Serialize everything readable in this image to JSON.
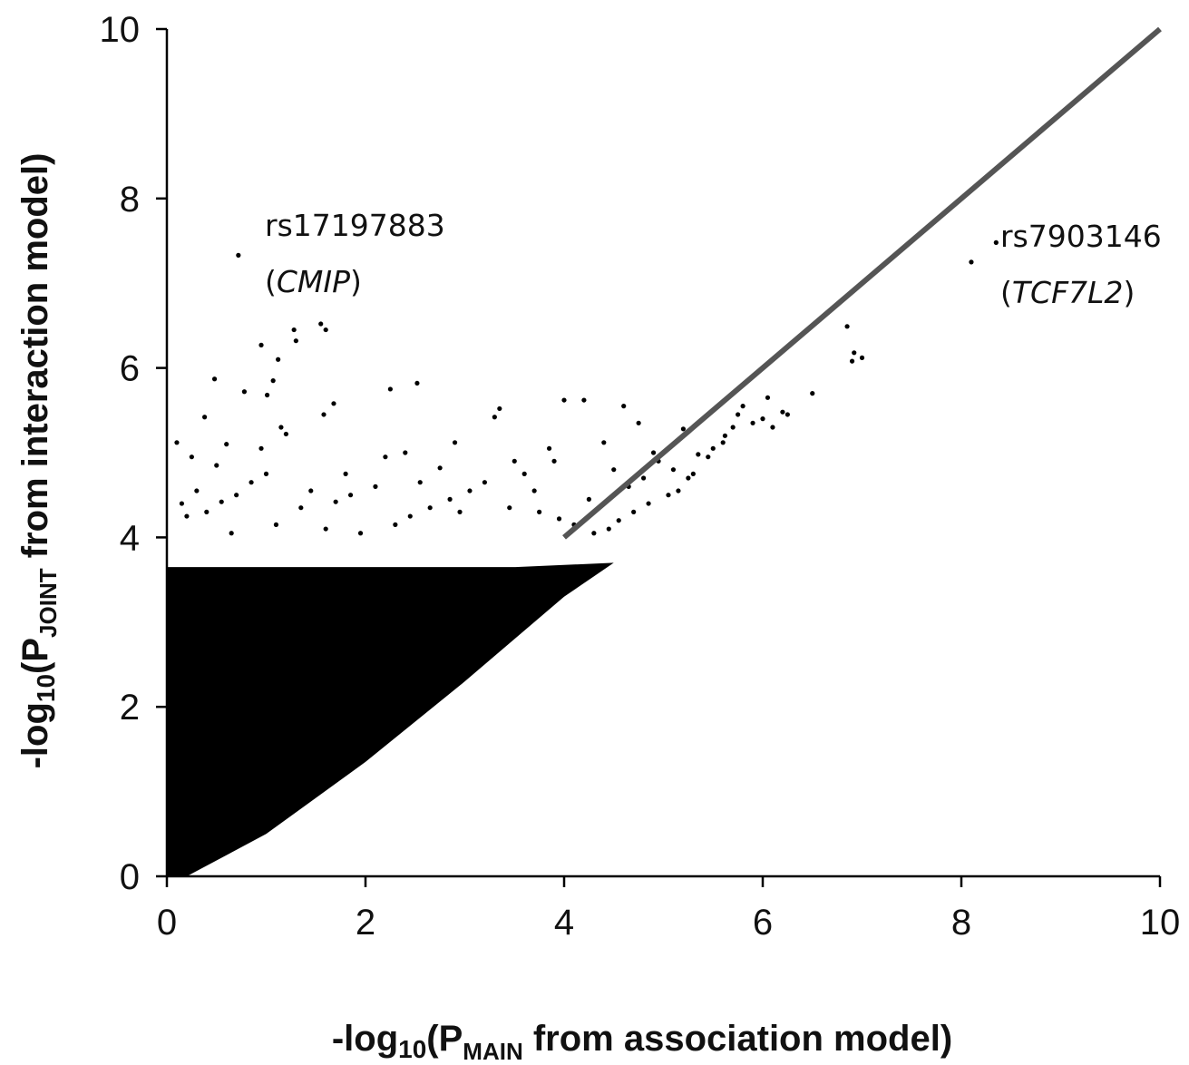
{
  "chart_data": {
    "type": "scatter",
    "xlabel": {
      "prefix": "-log",
      "base": "10",
      "open": "(P",
      "subscript": "MAIN",
      "rest": " from association model)"
    },
    "ylabel": {
      "prefix": "-log",
      "base": "10",
      "open": "(P",
      "subscript": "JOINT",
      "rest": " from interaction model)"
    },
    "xlim": [
      0,
      10
    ],
    "ylim": [
      0,
      10
    ],
    "xticks": [
      "0",
      "2",
      "4",
      "6",
      "8",
      "10"
    ],
    "yticks": [
      "0",
      "2",
      "4",
      "6",
      "8",
      "10"
    ],
    "grid": false,
    "point_color": "#000000",
    "reference_line": {
      "from": [
        4,
        4
      ],
      "to": [
        10,
        10
      ],
      "color": "#555555"
    },
    "dense_region": {
      "description_values": "continuous cloud of points between y = x curve and y ≈ 3.6",
      "x_range": [
        0,
        4.5
      ],
      "upper_y": 3.65,
      "lower_curve": [
        [
          0.2,
          0
        ],
        [
          1,
          0.5
        ],
        [
          2,
          1.35
        ],
        [
          3,
          2.3
        ],
        [
          4,
          3.3
        ],
        [
          4.5,
          3.7
        ]
      ]
    },
    "points": [
      [
        0.72,
        7.33
      ],
      [
        1.55,
        6.52
      ],
      [
        1.6,
        6.45
      ],
      [
        1.28,
        6.45
      ],
      [
        0.95,
        6.27
      ],
      [
        1.3,
        6.32
      ],
      [
        1.12,
        6.1
      ],
      [
        0.48,
        5.87
      ],
      [
        1.07,
        5.85
      ],
      [
        2.25,
        5.75
      ],
      [
        2.52,
        5.82
      ],
      [
        0.78,
        5.72
      ],
      [
        1.01,
        5.68
      ],
      [
        3.35,
        5.52
      ],
      [
        3.3,
        5.42
      ],
      [
        4.0,
        5.62
      ],
      [
        4.2,
        5.62
      ],
      [
        4.6,
        5.55
      ],
      [
        4.75,
        5.35
      ],
      [
        5.2,
        5.28
      ],
      [
        1.68,
        5.58
      ],
      [
        1.58,
        5.45
      ],
      [
        0.38,
        5.42
      ],
      [
        2.9,
        5.12
      ],
      [
        4.4,
        5.12
      ],
      [
        3.85,
        5.05
      ],
      [
        1.15,
        5.3
      ],
      [
        1.2,
        5.22
      ],
      [
        0.6,
        5.1
      ],
      [
        0.25,
        4.95
      ],
      [
        2.4,
        5.0
      ],
      [
        2.2,
        4.95
      ],
      [
        2.75,
        4.82
      ],
      [
        3.6,
        4.75
      ],
      [
        4.9,
        5.0
      ],
      [
        4.95,
        4.9
      ],
      [
        5.1,
        4.8
      ],
      [
        5.3,
        4.75
      ],
      [
        5.5,
        5.05
      ],
      [
        5.6,
        5.12
      ],
      [
        5.75,
        5.45
      ],
      [
        5.8,
        5.55
      ],
      [
        5.9,
        5.35
      ],
      [
        6.0,
        5.4
      ],
      [
        6.05,
        5.65
      ],
      [
        6.2,
        5.48
      ],
      [
        6.5,
        5.7
      ],
      [
        6.9,
        6.08
      ],
      [
        6.85,
        6.49
      ],
      [
        7.0,
        6.12
      ],
      [
        6.92,
        6.18
      ],
      [
        8.1,
        7.25
      ],
      [
        8.35,
        7.48
      ],
      [
        5.45,
        4.95
      ],
      [
        5.25,
        4.7
      ],
      [
        5.15,
        4.55
      ],
      [
        5.05,
        4.5
      ],
      [
        4.85,
        4.4
      ],
      [
        4.7,
        4.3
      ],
      [
        4.55,
        4.2
      ],
      [
        4.45,
        4.1
      ],
      [
        3.2,
        4.65
      ],
      [
        3.05,
        4.55
      ],
      [
        2.85,
        4.45
      ],
      [
        2.65,
        4.35
      ],
      [
        2.45,
        4.25
      ],
      [
        2.1,
        4.6
      ],
      [
        1.85,
        4.5
      ],
      [
        1.7,
        4.42
      ],
      [
        1.45,
        4.55
      ],
      [
        1.35,
        4.35
      ],
      [
        1.0,
        4.75
      ],
      [
        0.85,
        4.65
      ],
      [
        0.7,
        4.5
      ],
      [
        0.55,
        4.42
      ],
      [
        0.4,
        4.3
      ],
      [
        0.3,
        4.55
      ],
      [
        0.15,
        4.4
      ],
      [
        0.1,
        5.12
      ],
      [
        0.2,
        4.25
      ],
      [
        3.45,
        4.35
      ],
      [
        3.75,
        4.3
      ],
      [
        3.95,
        4.22
      ],
      [
        4.1,
        4.15
      ],
      [
        4.3,
        4.05
      ],
      [
        4.65,
        4.6
      ],
      [
        4.5,
        4.8
      ],
      [
        3.9,
        4.9
      ],
      [
        3.5,
        4.9
      ],
      [
        2.95,
        4.3
      ],
      [
        2.3,
        4.15
      ],
      [
        1.95,
        4.05
      ],
      [
        1.6,
        4.1
      ],
      [
        1.1,
        4.15
      ],
      [
        0.65,
        4.05
      ],
      [
        5.35,
        4.98
      ],
      [
        5.62,
        5.2
      ],
      [
        5.7,
        5.3
      ],
      [
        6.1,
        5.3
      ],
      [
        6.25,
        5.45
      ],
      [
        3.7,
        4.55
      ],
      [
        4.25,
        4.45
      ],
      [
        4.8,
        4.7
      ],
      [
        2.55,
        4.65
      ],
      [
        1.8,
        4.75
      ],
      [
        0.95,
        5.05
      ],
      [
        0.5,
        4.85
      ]
    ],
    "annotations": [
      {
        "id": "rs17197883",
        "line1": "rs17197883",
        "open": "(",
        "gene": "CMIP",
        "close": ")"
      },
      {
        "id": "rs7903146",
        "line1": "rs7903146",
        "open": "(",
        "gene": "TCF7L2",
        "close": ")"
      }
    ]
  }
}
